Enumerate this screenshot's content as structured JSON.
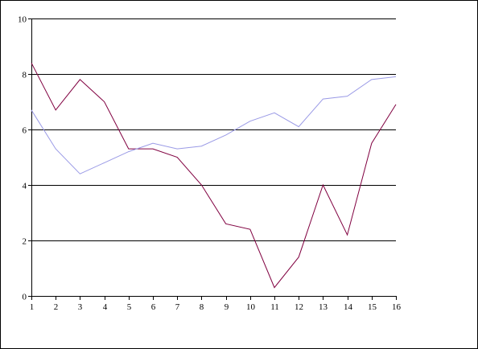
{
  "chart_data": {
    "type": "line",
    "title": "",
    "xlabel": "",
    "ylabel": "",
    "x": [
      1,
      2,
      3,
      4,
      5,
      6,
      7,
      8,
      9,
      10,
      11,
      12,
      13,
      14,
      15,
      16
    ],
    "ylim": [
      0,
      10
    ],
    "yticks": [
      0,
      2,
      4,
      6,
      8,
      10
    ],
    "grid": "horizontal",
    "legend": "none",
    "series": [
      {
        "color": "#800040",
        "values": [
          8.4,
          6.7,
          7.8,
          7.0,
          5.3,
          5.3,
          5.0,
          4.0,
          2.6,
          2.4,
          0.3,
          1.4,
          4.0,
          2.2,
          5.5,
          6.9
        ]
      },
      {
        "color": "#9a9ae6",
        "values": [
          6.7,
          5.3,
          4.4,
          4.8,
          5.2,
          5.5,
          5.3,
          5.4,
          5.8,
          6.3,
          6.6,
          6.1,
          7.1,
          7.2,
          7.8,
          7.9
        ]
      }
    ]
  }
}
